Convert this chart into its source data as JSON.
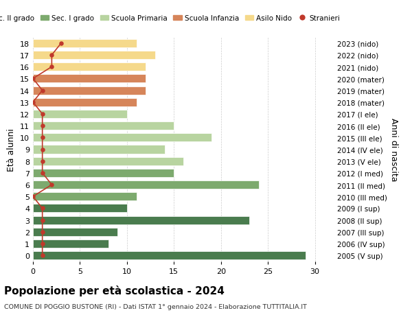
{
  "ages": [
    18,
    17,
    16,
    15,
    14,
    13,
    12,
    11,
    10,
    9,
    8,
    7,
    6,
    5,
    4,
    3,
    2,
    1,
    0
  ],
  "right_labels": [
    "2005 (V sup)",
    "2006 (IV sup)",
    "2007 (III sup)",
    "2008 (II sup)",
    "2009 (I sup)",
    "2010 (III med)",
    "2011 (II med)",
    "2012 (I med)",
    "2013 (V ele)",
    "2014 (IV ele)",
    "2015 (III ele)",
    "2016 (II ele)",
    "2017 (I ele)",
    "2018 (mater)",
    "2019 (mater)",
    "2020 (mater)",
    "2021 (nido)",
    "2022 (nido)",
    "2023 (nido)"
  ],
  "bar_values": [
    29,
    8,
    9,
    23,
    10,
    11,
    24,
    15,
    16,
    14,
    19,
    15,
    10,
    11,
    12,
    12,
    12,
    13,
    11
  ],
  "stranieri": [
    1,
    1,
    1,
    1,
    1,
    0,
    2,
    1,
    1,
    1,
    1,
    1,
    1,
    0,
    1,
    0,
    2,
    2,
    3
  ],
  "bar_colors": [
    "#4a7c4e",
    "#4a7c4e",
    "#4a7c4e",
    "#4a7c4e",
    "#4a7c4e",
    "#7daa6e",
    "#7daa6e",
    "#7daa6e",
    "#b8d4a0",
    "#b8d4a0",
    "#b8d4a0",
    "#b8d4a0",
    "#b8d4a0",
    "#d6855a",
    "#d6855a",
    "#d6855a",
    "#f5d98b",
    "#f5d98b",
    "#f5d98b"
  ],
  "title": "Popolazione per età scolastica - 2024",
  "subtitle": "COMUNE DI POGGIO BUSTONE (RI) - Dati ISTAT 1° gennaio 2024 - Elaborazione TUTTITALIA.IT",
  "ylabel_left": "Età alunni",
  "ylabel_right": "Anni di nascita",
  "xlim": [
    0,
    32
  ],
  "xticks": [
    0,
    5,
    10,
    15,
    20,
    25,
    30
  ],
  "legend_labels": [
    "Sec. II grado",
    "Sec. I grado",
    "Scuola Primaria",
    "Scuola Infanzia",
    "Asilo Nido",
    "Stranieri"
  ],
  "legend_colors": [
    "#4a7c4e",
    "#7daa6e",
    "#b8d4a0",
    "#d6855a",
    "#f5d98b",
    "#c0392b"
  ],
  "stranieri_color": "#c0392b",
  "grid_color": "#cccccc",
  "bg_color": "#ffffff"
}
